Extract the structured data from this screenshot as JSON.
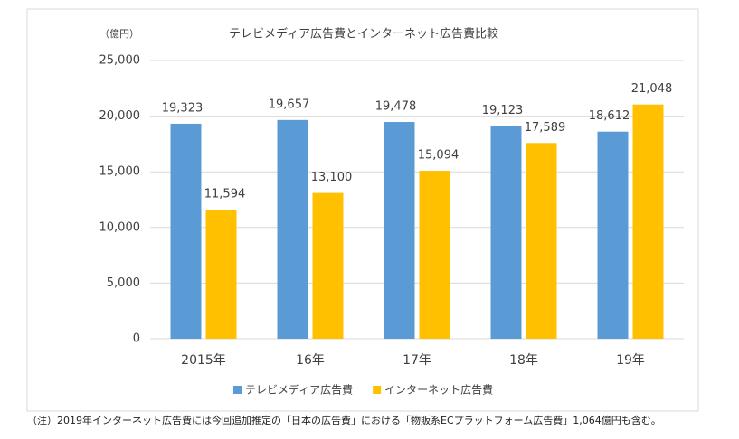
{
  "chart_data": {
    "type": "bar",
    "title": "テレビメディア広告費とインターネット広告費比較",
    "y_unit": "（億円）",
    "categories": [
      "2015年",
      "16年",
      "17年",
      "18年",
      "19年"
    ],
    "series": [
      {
        "name": "テレビメディア広告費",
        "color": "#5b9bd5",
        "values": [
          19323,
          19657,
          19478,
          19123,
          18612
        ],
        "value_labels": [
          "19,323",
          "19,657",
          "19,478",
          "19,123",
          "18,612"
        ]
      },
      {
        "name": "インターネット広告費",
        "color": "#ffc000",
        "values": [
          11594,
          13100,
          15094,
          17589,
          21048
        ],
        "value_labels": [
          "11,594",
          "13,100",
          "15,094",
          "17,589",
          "21,048"
        ]
      }
    ],
    "ylim": [
      0,
      25000
    ],
    "yticks": [
      0,
      {
        "value": 5000,
        "label": "5,000"
      },
      {
        "value": 10000,
        "label": "10,000"
      },
      {
        "value": 15000,
        "label": "15,000"
      },
      {
        "value": 20000,
        "label": "20,000"
      },
      {
        "value": 25000,
        "label": "25,000"
      }
    ],
    "grid": true,
    "legend": "bottom",
    "footnote": "（注）2019年インターネット広告費には今回追加推定の「日本の広告費」における「物販系ECプラットフォーム広告費」1,064億円も含む。"
  }
}
